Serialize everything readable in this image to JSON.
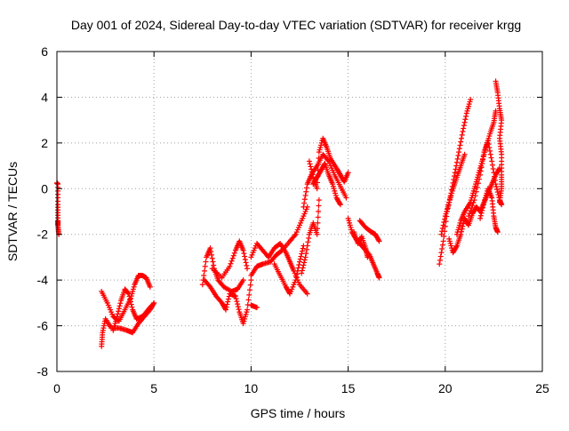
{
  "chart_data": {
    "type": "scatter",
    "title": "Day 001 of 2024, Sidereal Day-to-day VTEC variation (SDTVAR) for receiver krgg",
    "xlabel": "GPS time / hours",
    "ylabel": "SDTVAR / TECUs",
    "xlim": [
      0,
      25
    ],
    "ylim": [
      -8,
      6
    ],
    "xticks": [
      0,
      5,
      10,
      15,
      20,
      25
    ],
    "yticks": [
      -8,
      -6,
      -4,
      -2,
      0,
      2,
      4,
      6
    ],
    "grid": true,
    "marker": "+",
    "series": [
      {
        "name": "SDTVAR",
        "color": "#ff0000",
        "tracks": [
          [
            [
              0.0,
              0.25
            ],
            [
              0.05,
              0.2
            ],
            [
              0.05,
              -0.7
            ],
            [
              0.05,
              -1.4
            ],
            [
              0.05,
              -1.6
            ],
            [
              0.1,
              -2.0
            ]
          ],
          [
            [
              2.3,
              -6.9
            ],
            [
              2.35,
              -6.3
            ],
            [
              2.5,
              -5.7
            ],
            [
              2.8,
              -6.1
            ],
            [
              3.2,
              -6.1
            ],
            [
              3.6,
              -6.2
            ],
            [
              3.9,
              -6.3
            ],
            [
              4.2,
              -5.9
            ],
            [
              4.5,
              -5.6
            ],
            [
              4.8,
              -5.3
            ],
            [
              5.0,
              -5.0
            ]
          ],
          [
            [
              2.3,
              -4.5
            ],
            [
              2.6,
              -5.0
            ],
            [
              2.9,
              -5.6
            ],
            [
              3.2,
              -5.8
            ],
            [
              3.5,
              -5.3
            ],
            [
              3.8,
              -4.8
            ],
            [
              4.0,
              -4.2
            ],
            [
              4.2,
              -3.8
            ],
            [
              4.4,
              -3.8
            ],
            [
              4.6,
              -3.9
            ],
            [
              4.8,
              -4.3
            ]
          ],
          [
            [
              2.9,
              -6.2
            ],
            [
              3.1,
              -5.6
            ],
            [
              3.3,
              -4.9
            ],
            [
              3.5,
              -4.4
            ],
            [
              3.7,
              -4.6
            ],
            [
              3.9,
              -5.3
            ],
            [
              4.1,
              -5.7
            ],
            [
              4.4,
              -5.6
            ],
            [
              4.7,
              -5.3
            ],
            [
              4.9,
              -5.1
            ]
          ],
          [
            [
              7.5,
              -4.2
            ],
            [
              7.7,
              -3.0
            ],
            [
              7.9,
              -2.6
            ],
            [
              8.1,
              -3.5
            ],
            [
              8.3,
              -4.0
            ],
            [
              8.6,
              -4.3
            ],
            [
              9.0,
              -4.5
            ],
            [
              9.3,
              -4.4
            ],
            [
              9.6,
              -4.0
            ]
          ],
          [
            [
              7.6,
              -4.0
            ],
            [
              7.9,
              -4.3
            ],
            [
              8.2,
              -4.7
            ],
            [
              8.5,
              -5.0
            ],
            [
              8.7,
              -5.3
            ],
            [
              8.9,
              -4.6
            ],
            [
              9.2,
              -4.7
            ],
            [
              9.4,
              -5.4
            ],
            [
              9.6,
              -5.9
            ],
            [
              9.8,
              -5.3
            ],
            [
              10.0,
              -4.0
            ]
          ],
          [
            [
              8.0,
              -3.5
            ],
            [
              8.5,
              -3.9
            ],
            [
              8.9,
              -3.4
            ],
            [
              9.2,
              -2.7
            ],
            [
              9.4,
              -2.3
            ],
            [
              9.6,
              -2.7
            ],
            [
              9.8,
              -3.5
            ]
          ],
          [
            [
              10.0,
              -3.8
            ],
            [
              10.3,
              -3.4
            ],
            [
              10.6,
              -3.3
            ],
            [
              11.0,
              -3.2
            ],
            [
              11.3,
              -2.9
            ],
            [
              11.6,
              -2.7
            ],
            [
              12.0,
              -2.3
            ],
            [
              12.3,
              -2.0
            ],
            [
              12.6,
              -1.4
            ],
            [
              12.9,
              -0.8
            ]
          ],
          [
            [
              10.0,
              -3.0
            ],
            [
              10.3,
              -2.4
            ],
            [
              10.6,
              -2.7
            ],
            [
              10.9,
              -3.0
            ],
            [
              11.2,
              -2.6
            ],
            [
              11.5,
              -2.4
            ],
            [
              11.8,
              -2.8
            ],
            [
              12.0,
              -3.2
            ],
            [
              12.2,
              -3.6
            ],
            [
              12.5,
              -4.2
            ],
            [
              12.9,
              -4.6
            ]
          ],
          [
            [
              10.0,
              -5.1
            ],
            [
              10.3,
              -5.2
            ]
          ],
          [
            [
              11.2,
              -3.3
            ],
            [
              11.5,
              -3.8
            ],
            [
              11.8,
              -4.3
            ],
            [
              12.0,
              -4.6
            ],
            [
              12.3,
              -4.0
            ],
            [
              12.5,
              -3.2
            ],
            [
              12.7,
              -2.5
            ]
          ],
          [
            [
              12.6,
              -3.7
            ],
            [
              12.8,
              -3.0
            ],
            [
              13.0,
              -2.0
            ],
            [
              13.2,
              -1.5
            ],
            [
              13.4,
              -2.0
            ],
            [
              13.5,
              -0.5
            ]
          ],
          [
            [
              12.7,
              -0.8
            ],
            [
              12.9,
              0.2
            ],
            [
              13.1,
              0.6
            ],
            [
              13.4,
              1.0
            ],
            [
              13.7,
              1.5
            ],
            [
              14.0,
              1.2
            ],
            [
              14.3,
              0.6
            ],
            [
              14.6,
              0.1
            ],
            [
              14.9,
              -0.4
            ]
          ],
          [
            [
              13.0,
              1.2
            ],
            [
              13.2,
              0.5
            ],
            [
              13.4,
              0.0
            ],
            [
              13.5,
              1.6
            ],
            [
              13.7,
              2.2
            ],
            [
              13.9,
              1.8
            ],
            [
              14.1,
              1.3
            ],
            [
              14.4,
              0.9
            ],
            [
              14.6,
              0.6
            ],
            [
              14.8,
              0.3
            ],
            [
              15.0,
              0.7
            ]
          ],
          [
            [
              13.2,
              0.2
            ],
            [
              13.4,
              0.5
            ],
            [
              13.6,
              0.8
            ],
            [
              13.8,
              1.1
            ],
            [
              14.0,
              0.6
            ],
            [
              14.2,
              0.2
            ],
            [
              14.4,
              -0.4
            ],
            [
              14.6,
              -0.7
            ]
          ],
          [
            [
              15.0,
              -1.3
            ],
            [
              15.2,
              -1.9
            ],
            [
              15.4,
              -2.2
            ],
            [
              15.6,
              -2.4
            ],
            [
              15.8,
              -2.6
            ],
            [
              16.1,
              -2.9
            ],
            [
              16.3,
              -3.3
            ],
            [
              16.5,
              -3.7
            ],
            [
              16.6,
              -3.9
            ]
          ],
          [
            [
              15.6,
              -1.4
            ],
            [
              15.9,
              -1.7
            ],
            [
              16.2,
              -1.9
            ],
            [
              16.4,
              -2.0
            ],
            [
              16.6,
              -2.3
            ]
          ],
          [
            [
              15.3,
              -1.9
            ],
            [
              15.5,
              -2.4
            ],
            [
              15.7,
              -2.1
            ],
            [
              15.9,
              -2.6
            ],
            [
              16.0,
              -3.0
            ]
          ],
          [
            [
              19.7,
              -3.3
            ],
            [
              19.9,
              -2.3
            ],
            [
              20.1,
              -1.0
            ],
            [
              20.3,
              -0.2
            ],
            [
              20.5,
              0.7
            ],
            [
              20.7,
              1.6
            ],
            [
              20.9,
              2.5
            ],
            [
              21.1,
              3.3
            ],
            [
              21.3,
              3.9
            ]
          ],
          [
            [
              19.8,
              -2.0
            ],
            [
              20.0,
              -1.2
            ],
            [
              20.2,
              -0.6
            ],
            [
              20.4,
              0.0
            ],
            [
              20.6,
              0.5
            ],
            [
              20.8,
              1.0
            ],
            [
              21.0,
              1.5
            ]
          ],
          [
            [
              20.2,
              -2.2
            ],
            [
              20.4,
              -2.8
            ],
            [
              20.6,
              -2.5
            ],
            [
              20.8,
              -2.0
            ],
            [
              21.0,
              -1.3
            ],
            [
              21.2,
              -1.6
            ],
            [
              21.4,
              -1.1
            ],
            [
              21.6,
              -0.8
            ],
            [
              21.8,
              -1.0
            ],
            [
              22.0,
              -0.6
            ],
            [
              22.2,
              -0.2
            ],
            [
              22.4,
              0.2
            ],
            [
              22.6,
              0.6
            ],
            [
              22.8,
              0.9
            ]
          ],
          [
            [
              20.6,
              -2.0
            ],
            [
              20.8,
              -1.4
            ],
            [
              21.0,
              -1.0
            ],
            [
              21.3,
              -0.6
            ],
            [
              21.5,
              0.0
            ],
            [
              21.7,
              0.6
            ],
            [
              21.9,
              1.2
            ],
            [
              22.1,
              1.8
            ],
            [
              22.3,
              2.4
            ],
            [
              22.5,
              2.9
            ],
            [
              22.6,
              3.4
            ]
          ],
          [
            [
              21.2,
              -1.2
            ],
            [
              21.5,
              -0.5
            ],
            [
              21.8,
              0.6
            ],
            [
              22.0,
              1.6
            ],
            [
              22.2,
              2.1
            ],
            [
              22.4,
              1.2
            ],
            [
              22.6,
              0.2
            ],
            [
              22.8,
              -0.5
            ],
            [
              22.9,
              -0.7
            ]
          ],
          [
            [
              21.8,
              -1.3
            ],
            [
              22.0,
              -0.6
            ],
            [
              22.2,
              0.0
            ],
            [
              22.4,
              -0.4
            ],
            [
              22.5,
              -1.2
            ],
            [
              22.6,
              -1.7
            ],
            [
              22.7,
              -1.9
            ]
          ],
          [
            [
              22.6,
              4.7
            ],
            [
              22.7,
              4.2
            ],
            [
              22.8,
              3.5
            ],
            [
              22.9,
              3.0
            ],
            [
              22.8,
              2.2
            ],
            [
              22.9,
              1.5
            ],
            [
              22.9,
              0.6
            ],
            [
              22.9,
              0.0
            ],
            [
              22.8,
              -0.6
            ]
          ]
        ]
      }
    ]
  }
}
